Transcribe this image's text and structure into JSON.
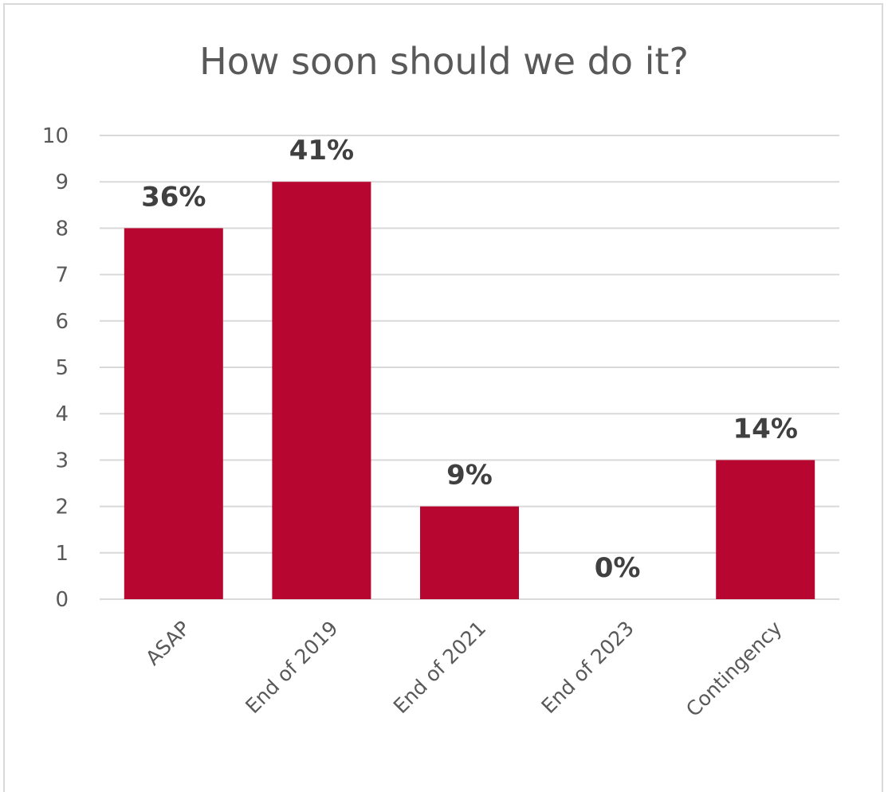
{
  "chart_data": {
    "type": "bar",
    "title": "How soon should we do it?",
    "categories": [
      "ASAP",
      "End of 2019",
      "End of 2021",
      "End of 2023",
      "Contingency"
    ],
    "values": [
      8,
      9,
      2,
      0,
      3
    ],
    "data_labels": [
      "36%",
      "41%",
      "9%",
      "0%",
      "14%"
    ],
    "xlabel": "",
    "ylabel": "",
    "ylim": [
      0,
      10
    ],
    "yticks": [
      0,
      1,
      2,
      3,
      4,
      5,
      6,
      7,
      8,
      9,
      10
    ],
    "grid": true,
    "legend": "none",
    "bar_color": "#b7062f"
  }
}
